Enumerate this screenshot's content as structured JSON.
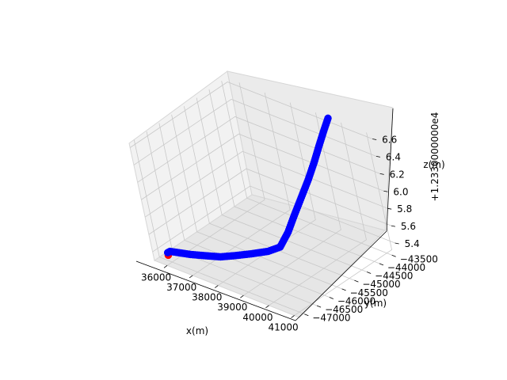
{
  "chart_data": {
    "type": "scatter",
    "projection": "3d",
    "xlabel": "x(m)",
    "ylabel": "y(m)",
    "zlabel": "z(m)",
    "z_offset_label": "+1.2330000000e4",
    "xlim": [
      35500,
      41200
    ],
    "ylim": [
      -47200,
      -43300
    ],
    "zlim": [
      5.3,
      6.65
    ],
    "x_ticks": [
      36000,
      37000,
      38000,
      39000,
      40000,
      41000
    ],
    "y_ticks": [
      -47000,
      -46500,
      -46000,
      -45500,
      -45000,
      -44500,
      -44000,
      -43500
    ],
    "z_ticks": [
      5.4,
      5.6,
      5.8,
      6.0,
      6.2,
      6.4,
      6.6
    ],
    "x_tick_labels": [
      "36000",
      "37000",
      "38000",
      "39000",
      "40000",
      "41000"
    ],
    "y_tick_labels": [
      "−47000",
      "−46500",
      "−46000",
      "−45500",
      "−45000",
      "−44500",
      "−44000",
      "−43500"
    ],
    "z_tick_labels": [
      "5.4",
      "5.6",
      "5.8",
      "6.0",
      "6.2",
      "6.4",
      "6.6"
    ],
    "grid": true,
    "series": [
      {
        "color": "#ff0000",
        "points": [
          [
            35650,
            -46800,
            5.3
          ]
        ]
      },
      {
        "color": "#0000ff",
        "points": [
          [
            35650,
            -46800,
            5.33
          ],
          [
            35700,
            -46750,
            5.34
          ],
          [
            36000,
            -46700,
            5.35
          ],
          [
            36400,
            -46620,
            5.36
          ],
          [
            36800,
            -46500,
            5.37
          ],
          [
            37300,
            -46330,
            5.38
          ],
          [
            37700,
            -46120,
            5.4
          ],
          [
            38100,
            -45880,
            5.42
          ],
          [
            38500,
            -45600,
            5.44
          ],
          [
            38750,
            -45350,
            5.47
          ],
          [
            38800,
            -45000,
            5.58
          ],
          [
            38850,
            -44700,
            5.72
          ],
          [
            38950,
            -44400,
            5.88
          ],
          [
            39050,
            -44100,
            6.04
          ],
          [
            39150,
            -43850,
            6.2
          ],
          [
            39260,
            -43650,
            6.36
          ],
          [
            39380,
            -43450,
            6.52
          ],
          [
            39480,
            -43300,
            6.64
          ]
        ]
      }
    ]
  }
}
